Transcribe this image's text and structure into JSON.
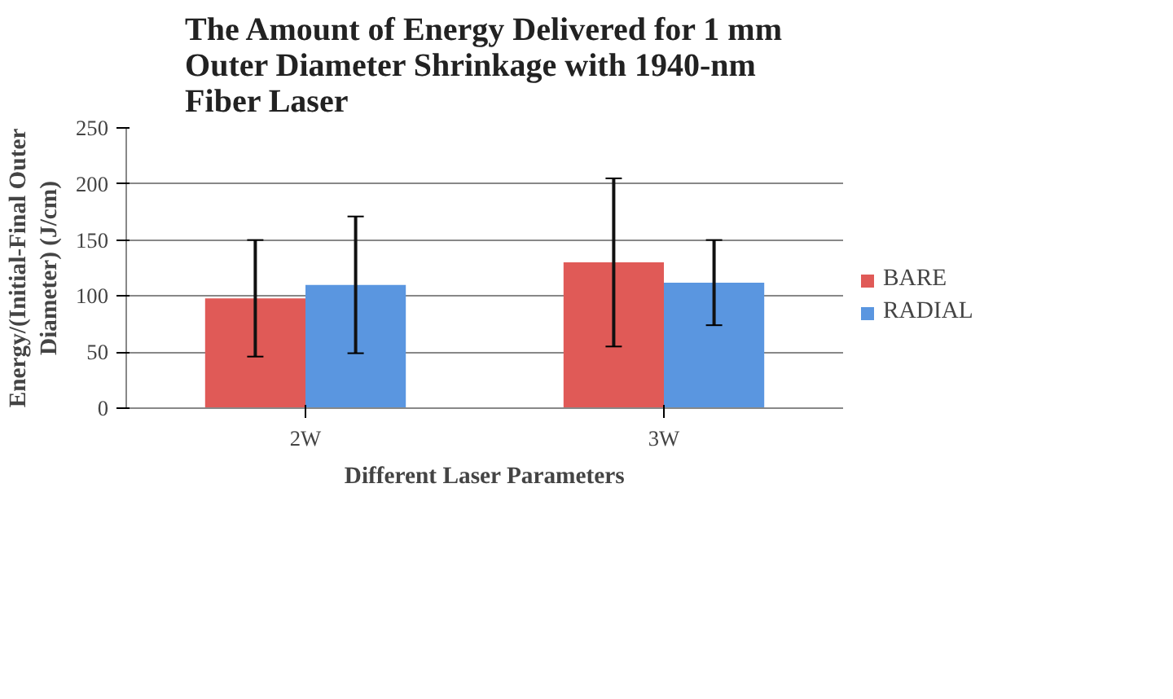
{
  "chart_data": {
    "type": "bar",
    "title": "The Amount of Energy Delivered for 1 mm\nOuter Diameter Shrinkage with 1940-nm\nFiber Laser",
    "xlabel": "Different Laser Parameters",
    "ylabel": "Energy/(Initial-Final Outer\nDiameter) (J/cm)",
    "categories": [
      "2W",
      "3W"
    ],
    "series": [
      {
        "name": "BARE",
        "color": "#e05a57",
        "values": [
          98,
          130
        ],
        "errors": [
          52,
          75
        ]
      },
      {
        "name": "RADIAL",
        "color": "#5a96e0",
        "values": [
          110,
          112
        ],
        "errors": [
          61,
          38
        ]
      }
    ],
    "ylim": [
      0,
      250
    ],
    "yticks": [
      0,
      50,
      100,
      150,
      200,
      250
    ],
    "grid": "y",
    "legend": "right"
  }
}
